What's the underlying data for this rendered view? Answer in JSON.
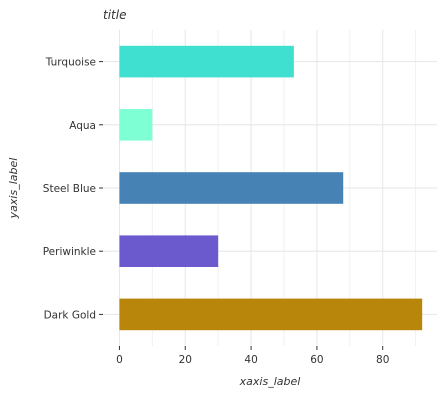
{
  "chart_data": {
    "type": "bar",
    "orientation": "horizontal",
    "title": "title",
    "xlabel": "xaxis_label",
    "ylabel": "yaxis_label",
    "categories": [
      "Dark Gold",
      "Periwinkle",
      "Steel Blue",
      "Aqua",
      "Turquoise"
    ],
    "values": [
      92,
      30,
      68,
      10,
      53
    ],
    "colors": [
      "#b8860b",
      "#6a5acd",
      "#4682b4",
      "#7fffd4",
      "#40e0d0"
    ],
    "xlim": [
      -5,
      96.5
    ],
    "xticks": [
      0,
      20,
      40,
      60,
      80
    ],
    "xtick_labels": [
      "0",
      "20",
      "40",
      "60",
      "80"
    ],
    "grid": true,
    "legend": "none"
  }
}
